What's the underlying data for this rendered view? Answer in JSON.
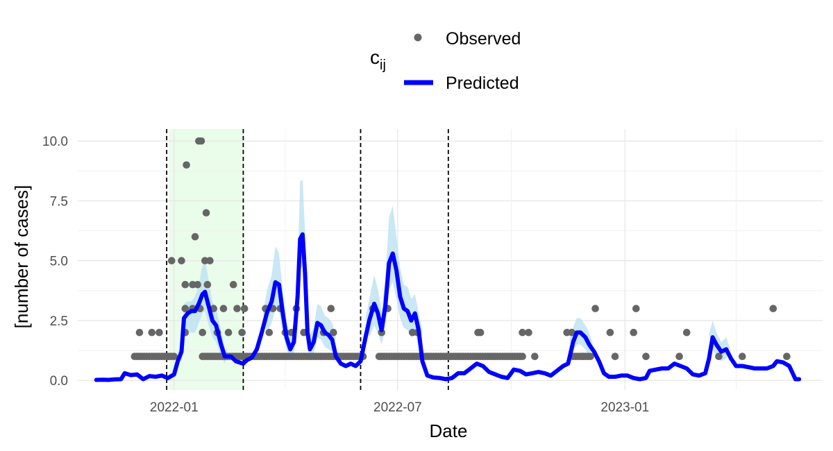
{
  "chart_data": {
    "type": "line",
    "xlabel": "Date",
    "ylabel": "[number of cases]",
    "x_range": [
      "2021-10-15",
      "2023-06-10"
    ],
    "ylim": [
      -0.4,
      10.5
    ],
    "y_ticks": [
      0,
      2.5,
      5,
      7.5,
      10
    ],
    "y_tick_labels": [
      "0.0",
      "2.5",
      "5.0",
      "7.5",
      "10.0"
    ],
    "x_ticks": [
      "2022-01-01",
      "2022-07-01",
      "2023-01-01"
    ],
    "x_tick_labels": [
      "2022-01",
      "2022-07",
      "2023-01"
    ],
    "grid": true,
    "legend": {
      "title": "c",
      "title_subscript": "ij",
      "position": "top",
      "entries": [
        {
          "label": "Observed",
          "kind": "point",
          "color": "#666666"
        },
        {
          "label": "Predicted",
          "kind": "line",
          "color": "#0000ff"
        }
      ]
    },
    "vlines": [
      "2021-12-26",
      "2022-02-26",
      "2022-06-01",
      "2022-08-11"
    ],
    "shaded_period": {
      "start": "2021-12-28",
      "end": "2022-02-26",
      "color": "#eafcea"
    },
    "colors": {
      "observed": "#666666",
      "predicted": "#0000ff",
      "ribbon": "#bfe3f2"
    },
    "predicted": [
      [
        "2021-10-30",
        0.02
      ],
      [
        "2021-11-04",
        0.03
      ],
      [
        "2021-11-09",
        0.02
      ],
      [
        "2021-11-14",
        0.04
      ],
      [
        "2021-11-19",
        0.05
      ],
      [
        "2021-11-22",
        0.3
      ],
      [
        "2021-11-27",
        0.22
      ],
      [
        "2021-12-02",
        0.25
      ],
      [
        "2021-12-07",
        0.05
      ],
      [
        "2021-12-12",
        0.18
      ],
      [
        "2021-12-17",
        0.15
      ],
      [
        "2021-12-22",
        0.2
      ],
      [
        "2021-12-27",
        0.1
      ],
      [
        "2022-01-01",
        0.25
      ],
      [
        "2022-01-04",
        0.8
      ],
      [
        "2022-01-07",
        1.2
      ],
      [
        "2022-01-09",
        2.6
      ],
      [
        "2022-01-12",
        2.8
      ],
      [
        "2022-01-15",
        2.9
      ],
      [
        "2022-01-18",
        2.9
      ],
      [
        "2022-01-21",
        3.2
      ],
      [
        "2022-01-24",
        3.6
      ],
      [
        "2022-01-26",
        3.7
      ],
      [
        "2022-01-29",
        3.1
      ],
      [
        "2022-02-01",
        2.5
      ],
      [
        "2022-02-04",
        2.3
      ],
      [
        "2022-02-08",
        1.5
      ],
      [
        "2022-02-11",
        1.0
      ],
      [
        "2022-02-16",
        1.0
      ],
      [
        "2022-02-20",
        0.8
      ],
      [
        "2022-02-26",
        0.7
      ],
      [
        "2022-03-01",
        0.85
      ],
      [
        "2022-03-05",
        0.95
      ],
      [
        "2022-03-09",
        1.3
      ],
      [
        "2022-03-13",
        2.0
      ],
      [
        "2022-03-17",
        2.8
      ],
      [
        "2022-03-21",
        3.3
      ],
      [
        "2022-03-24",
        4.1
      ],
      [
        "2022-03-27",
        4.0
      ],
      [
        "2022-03-30",
        2.8
      ],
      [
        "2022-04-02",
        1.8
      ],
      [
        "2022-04-05",
        1.3
      ],
      [
        "2022-04-08",
        1.6
      ],
      [
        "2022-04-11",
        3.5
      ],
      [
        "2022-04-13",
        5.9
      ],
      [
        "2022-04-15",
        6.1
      ],
      [
        "2022-04-17",
        4.5
      ],
      [
        "2022-04-19",
        2.0
      ],
      [
        "2022-04-21",
        1.3
      ],
      [
        "2022-04-24",
        1.6
      ],
      [
        "2022-04-27",
        2.4
      ],
      [
        "2022-04-30",
        2.3
      ],
      [
        "2022-05-03",
        2.0
      ],
      [
        "2022-05-06",
        1.9
      ],
      [
        "2022-05-09",
        1.7
      ],
      [
        "2022-05-12",
        1.0
      ],
      [
        "2022-05-16",
        0.7
      ],
      [
        "2022-05-20",
        0.6
      ],
      [
        "2022-05-24",
        0.7
      ],
      [
        "2022-05-28",
        0.6
      ],
      [
        "2022-06-01",
        0.8
      ],
      [
        "2022-06-05",
        1.8
      ],
      [
        "2022-06-08",
        2.5
      ],
      [
        "2022-06-12",
        3.2
      ],
      [
        "2022-06-15",
        2.8
      ],
      [
        "2022-06-18",
        2.1
      ],
      [
        "2022-06-21",
        3.1
      ],
      [
        "2022-06-24",
        4.9
      ],
      [
        "2022-06-27",
        5.3
      ],
      [
        "2022-06-30",
        4.6
      ],
      [
        "2022-07-03",
        3.5
      ],
      [
        "2022-07-06",
        3.0
      ],
      [
        "2022-07-09",
        2.9
      ],
      [
        "2022-07-12",
        2.5
      ],
      [
        "2022-07-15",
        2.8
      ],
      [
        "2022-07-18",
        2.1
      ],
      [
        "2022-07-21",
        0.8
      ],
      [
        "2022-07-25",
        0.2
      ],
      [
        "2022-07-30",
        0.12
      ],
      [
        "2022-08-04",
        0.1
      ],
      [
        "2022-08-09",
        0.05
      ],
      [
        "2022-08-14",
        0.1
      ],
      [
        "2022-08-19",
        0.3
      ],
      [
        "2022-08-24",
        0.3
      ],
      [
        "2022-08-29",
        0.5
      ],
      [
        "2022-09-03",
        0.7
      ],
      [
        "2022-09-08",
        0.6
      ],
      [
        "2022-09-13",
        0.35
      ],
      [
        "2022-09-18",
        0.25
      ],
      [
        "2022-09-23",
        0.15
      ],
      [
        "2022-09-28",
        0.1
      ],
      [
        "2022-10-03",
        0.45
      ],
      [
        "2022-10-08",
        0.4
      ],
      [
        "2022-10-13",
        0.25
      ],
      [
        "2022-10-18",
        0.3
      ],
      [
        "2022-10-23",
        0.35
      ],
      [
        "2022-10-28",
        0.3
      ],
      [
        "2022-11-02",
        0.2
      ],
      [
        "2022-11-07",
        0.4
      ],
      [
        "2022-11-12",
        0.6
      ],
      [
        "2022-11-16",
        0.7
      ],
      [
        "2022-11-20",
        1.6
      ],
      [
        "2022-11-23",
        2.0
      ],
      [
        "2022-11-26",
        2.0
      ],
      [
        "2022-11-30",
        1.8
      ],
      [
        "2022-12-03",
        1.5
      ],
      [
        "2022-12-07",
        1.2
      ],
      [
        "2022-12-11",
        0.8
      ],
      [
        "2022-12-15",
        0.3
      ],
      [
        "2022-12-19",
        0.15
      ],
      [
        "2022-12-24",
        0.15
      ],
      [
        "2022-12-29",
        0.2
      ],
      [
        "2023-01-03",
        0.2
      ],
      [
        "2023-01-08",
        0.1
      ],
      [
        "2023-01-13",
        0.05
      ],
      [
        "2023-01-18",
        0.1
      ],
      [
        "2023-01-21",
        0.4
      ],
      [
        "2023-01-26",
        0.45
      ],
      [
        "2023-01-31",
        0.5
      ],
      [
        "2023-02-05",
        0.5
      ],
      [
        "2023-02-10",
        0.7
      ],
      [
        "2023-02-15",
        0.6
      ],
      [
        "2023-02-20",
        0.5
      ],
      [
        "2023-02-25",
        0.25
      ],
      [
        "2023-03-02",
        0.2
      ],
      [
        "2023-03-07",
        0.3
      ],
      [
        "2023-03-10",
        0.9
      ],
      [
        "2023-03-13",
        1.8
      ],
      [
        "2023-03-16",
        1.5
      ],
      [
        "2023-03-20",
        1.2
      ],
      [
        "2023-03-24",
        1.3
      ],
      [
        "2023-03-28",
        0.9
      ],
      [
        "2023-04-01",
        0.6
      ],
      [
        "2023-04-06",
        0.6
      ],
      [
        "2023-04-11",
        0.55
      ],
      [
        "2023-04-16",
        0.5
      ],
      [
        "2023-04-21",
        0.5
      ],
      [
        "2023-04-26",
        0.5
      ],
      [
        "2023-05-01",
        0.6
      ],
      [
        "2023-05-04",
        0.8
      ],
      [
        "2023-05-09",
        0.75
      ],
      [
        "2023-05-14",
        0.6
      ],
      [
        "2023-05-19",
        0.05
      ],
      [
        "2023-05-22",
        0.05
      ]
    ],
    "ribbon": [
      [
        "2022-01-07",
        0.8,
        1.5
      ],
      [
        "2022-01-09",
        1.8,
        3.2
      ],
      [
        "2022-01-12",
        2.0,
        3.3
      ],
      [
        "2022-01-15",
        2.0,
        3.3
      ],
      [
        "2022-01-18",
        2.0,
        3.5
      ],
      [
        "2022-01-21",
        2.4,
        4.0
      ],
      [
        "2022-01-24",
        2.8,
        4.8
      ],
      [
        "2022-01-26",
        2.9,
        5.0
      ],
      [
        "2022-01-29",
        2.3,
        4.2
      ],
      [
        "2022-02-01",
        1.8,
        3.3
      ],
      [
        "2022-02-04",
        1.6,
        3.0
      ],
      [
        "2022-02-08",
        1.0,
        2.1
      ],
      [
        "2022-02-11",
        0.7,
        1.4
      ],
      [
        "2022-03-17",
        2.0,
        3.7
      ],
      [
        "2022-03-21",
        2.4,
        4.4
      ],
      [
        "2022-03-24",
        3.0,
        5.6
      ],
      [
        "2022-03-27",
        2.9,
        5.3
      ],
      [
        "2022-03-30",
        2.0,
        3.7
      ],
      [
        "2022-04-02",
        1.3,
        2.5
      ],
      [
        "2022-04-05",
        0.9,
        1.9
      ],
      [
        "2022-04-08",
        1.1,
        2.3
      ],
      [
        "2022-04-11",
        2.5,
        4.6
      ],
      [
        "2022-04-13",
        4.6,
        8.3
      ],
      [
        "2022-04-15",
        4.8,
        8.4
      ],
      [
        "2022-04-17",
        3.3,
        6.2
      ],
      [
        "2022-04-19",
        1.4,
        2.8
      ],
      [
        "2022-04-21",
        0.9,
        1.9
      ],
      [
        "2022-04-24",
        1.1,
        2.2
      ],
      [
        "2022-04-27",
        1.8,
        3.2
      ],
      [
        "2022-04-30",
        1.7,
        3.1
      ],
      [
        "2022-05-03",
        1.4,
        2.7
      ],
      [
        "2022-05-06",
        1.3,
        2.6
      ],
      [
        "2022-05-09",
        1.2,
        2.4
      ],
      [
        "2022-06-08",
        1.8,
        3.4
      ],
      [
        "2022-06-12",
        2.3,
        4.4
      ],
      [
        "2022-06-15",
        2.0,
        3.8
      ],
      [
        "2022-06-18",
        1.5,
        2.9
      ],
      [
        "2022-06-21",
        2.2,
        4.2
      ],
      [
        "2022-06-24",
        3.8,
        6.8
      ],
      [
        "2022-06-27",
        4.1,
        7.3
      ],
      [
        "2022-06-30",
        3.4,
        6.0
      ],
      [
        "2022-07-03",
        2.6,
        4.7
      ],
      [
        "2022-07-06",
        2.2,
        4.0
      ],
      [
        "2022-07-09",
        2.1,
        3.9
      ],
      [
        "2022-07-12",
        1.8,
        3.4
      ],
      [
        "2022-07-15",
        2.0,
        3.6
      ],
      [
        "2022-07-18",
        1.4,
        2.8
      ],
      [
        "2022-11-20",
        1.2,
        2.2
      ],
      [
        "2022-11-23",
        1.5,
        2.6
      ],
      [
        "2022-11-26",
        1.5,
        2.6
      ],
      [
        "2022-11-30",
        1.3,
        2.3
      ],
      [
        "2022-12-03",
        1.0,
        2.0
      ],
      [
        "2023-03-13",
        1.3,
        2.5
      ],
      [
        "2023-03-16",
        1.0,
        2.0
      ],
      [
        "2023-03-20",
        0.8,
        1.6
      ],
      [
        "2023-03-24",
        0.9,
        1.8
      ]
    ],
    "observed": [
      [
        "2021-12-04",
        2
      ],
      [
        "2021-12-14",
        2
      ],
      [
        "2021-12-20",
        2
      ],
      [
        "2021-12-27",
        1
      ],
      [
        "2021-12-30",
        5
      ],
      [
        "2022-01-07",
        5
      ],
      [
        "2022-01-11",
        9
      ],
      [
        "2022-01-10",
        4
      ],
      [
        "2022-01-10",
        3
      ],
      [
        "2022-01-10",
        2
      ],
      [
        "2022-01-16",
        4
      ],
      [
        "2022-01-16",
        3
      ],
      [
        "2022-01-18",
        6
      ],
      [
        "2022-01-21",
        10
      ],
      [
        "2022-01-23",
        10
      ],
      [
        "2022-01-20",
        4
      ],
      [
        "2022-01-22",
        3
      ],
      [
        "2022-01-24",
        2
      ],
      [
        "2022-01-26",
        5
      ],
      [
        "2022-01-27",
        7
      ],
      [
        "2022-01-28",
        4
      ],
      [
        "2022-01-30",
        5
      ],
      [
        "2022-02-02",
        3
      ],
      [
        "2022-02-05",
        2
      ],
      [
        "2022-02-10",
        3
      ],
      [
        "2022-02-14",
        2
      ],
      [
        "2022-02-18",
        4
      ],
      [
        "2022-02-21",
        3
      ],
      [
        "2022-02-25",
        2
      ],
      [
        "2022-02-27",
        3
      ],
      [
        "2022-03-16",
        3
      ],
      [
        "2022-03-19",
        2
      ],
      [
        "2022-03-22",
        3
      ],
      [
        "2022-03-28",
        3
      ],
      [
        "2022-04-01",
        2
      ],
      [
        "2022-04-06",
        2
      ],
      [
        "2022-04-10",
        3
      ],
      [
        "2022-04-16",
        2
      ],
      [
        "2022-05-02",
        2
      ],
      [
        "2022-05-08",
        3
      ],
      [
        "2022-05-10",
        2
      ],
      [
        "2022-05-14",
        1
      ],
      [
        "2022-06-11",
        3
      ],
      [
        "2022-06-18",
        2
      ],
      [
        "2022-06-23",
        3
      ],
      [
        "2022-07-13",
        2
      ],
      [
        "2022-07-17",
        2
      ],
      [
        "2022-09-04",
        2
      ],
      [
        "2022-09-06",
        2
      ],
      [
        "2022-10-10",
        2
      ],
      [
        "2022-10-15",
        2
      ],
      [
        "2022-11-15",
        2
      ],
      [
        "2022-11-19",
        2
      ],
      [
        "2022-12-08",
        3
      ],
      [
        "2022-12-20",
        2
      ],
      [
        "2023-01-08",
        2
      ],
      [
        "2023-01-10",
        3
      ],
      [
        "2023-02-20",
        2
      ],
      [
        "2023-05-01",
        3
      ],
      [
        "2022-10-20",
        1
      ],
      [
        "2022-11-28",
        1
      ],
      [
        "2022-12-04",
        1
      ],
      [
        "2022-12-24",
        1
      ],
      [
        "2023-01-18",
        1
      ],
      [
        "2023-02-14",
        1
      ],
      [
        "2023-03-18",
        1
      ],
      [
        "2023-04-06",
        1
      ],
      [
        "2023-05-12",
        1
      ]
    ],
    "observed_ones_runs": [
      [
        "2021-11-30",
        "2022-01-02"
      ],
      [
        "2022-01-24",
        "2022-06-03"
      ],
      [
        "2022-06-16",
        "2022-10-11"
      ],
      [
        "2022-11-20",
        "2022-12-02"
      ]
    ]
  }
}
